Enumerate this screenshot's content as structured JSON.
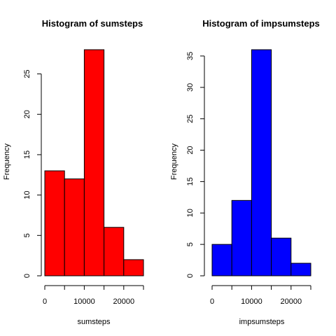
{
  "chart_data": [
    {
      "type": "histogram",
      "title": "Histogram of sumsteps",
      "xlabel": "sumsteps",
      "ylabel": "Frequency",
      "bins": [
        [
          0,
          5000
        ],
        [
          5000,
          10000
        ],
        [
          10000,
          15000
        ],
        [
          15000,
          20000
        ],
        [
          20000,
          25000
        ]
      ],
      "values": [
        13,
        12,
        28,
        6,
        2
      ],
      "xlim": [
        0,
        25000
      ],
      "ylim": [
        0,
        28
      ],
      "xticks": [
        0,
        10000,
        20000
      ],
      "xtick_labels": [
        "0",
        "10000",
        "20000"
      ],
      "xtick_marks": [
        0,
        5000,
        10000,
        15000,
        20000,
        25000
      ],
      "yticks": [
        0,
        5,
        10,
        15,
        20,
        25
      ],
      "ytick_labels": [
        "0",
        "5",
        "10",
        "15",
        "20",
        "25"
      ],
      "color": "#ff0000"
    },
    {
      "type": "histogram",
      "title": "Histogram of impsumsteps",
      "xlabel": "impsumsteps",
      "ylabel": "Frequency",
      "bins": [
        [
          0,
          5000
        ],
        [
          5000,
          10000
        ],
        [
          10000,
          15000
        ],
        [
          15000,
          20000
        ],
        [
          20000,
          25000
        ]
      ],
      "values": [
        5,
        12,
        36,
        6,
        2
      ],
      "xlim": [
        0,
        25000
      ],
      "ylim": [
        0,
        36
      ],
      "xticks": [
        0,
        10000,
        20000
      ],
      "xtick_labels": [
        "0",
        "10000",
        "20000"
      ],
      "xtick_marks": [
        0,
        5000,
        10000,
        15000,
        20000,
        25000
      ],
      "yticks": [
        0,
        5,
        10,
        15,
        20,
        25,
        30,
        35
      ],
      "ytick_labels": [
        "0",
        "5",
        "10",
        "15",
        "20",
        "25",
        "30",
        "35"
      ],
      "color": "#0000ff"
    }
  ]
}
